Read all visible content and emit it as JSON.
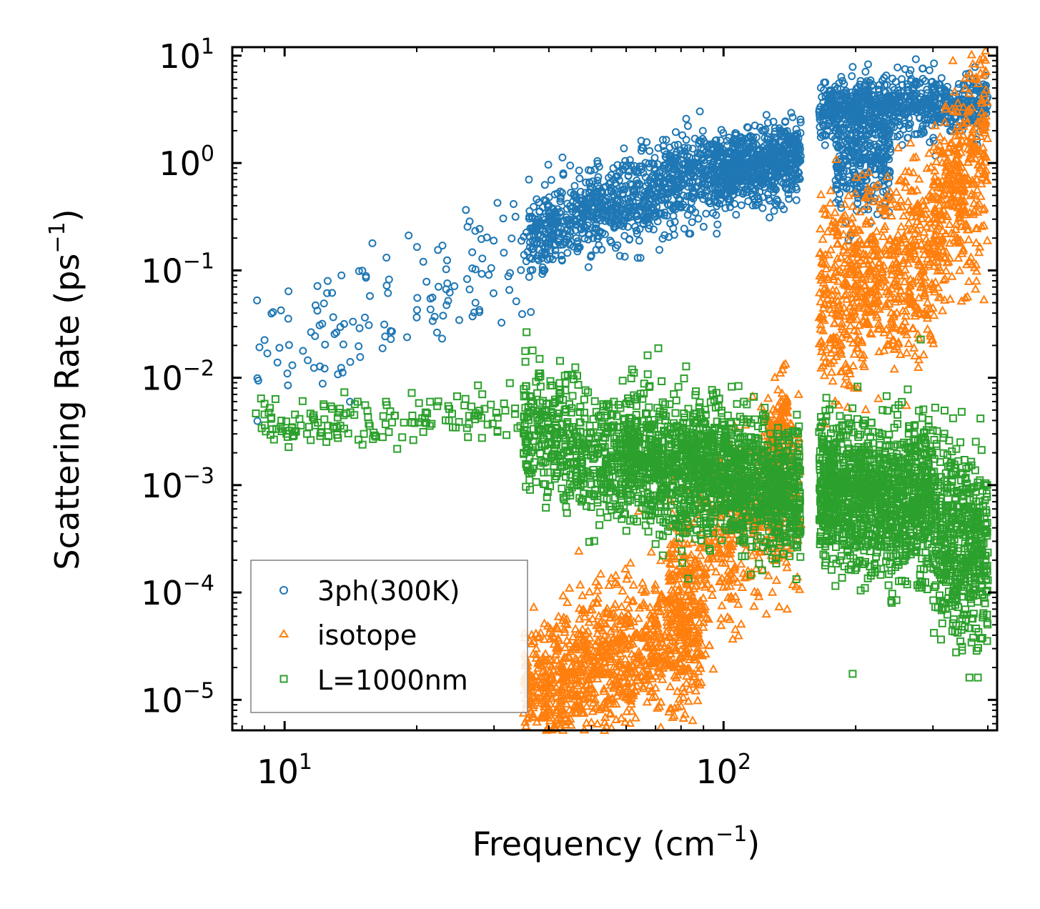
{
  "chart_data": {
    "type": "scatter",
    "xscale": "log",
    "yscale": "log",
    "xlabel": "Frequency (cm",
    "xlabel_unit_exponent": "−1",
    "xlabel_close": ")",
    "ylabel": "Scattering Rate (ps",
    "ylabel_unit_exponent": "−1",
    "ylabel_close": ")",
    "xlim": [
      7.6,
      420
    ],
    "ylim": [
      5.2e-06,
      12
    ],
    "x_ticks": [
      {
        "value": 10,
        "base": "10",
        "exp": "1"
      },
      {
        "value": 100,
        "base": "10",
        "exp": "2"
      }
    ],
    "y_ticks": [
      {
        "value": 10,
        "base": "10",
        "exp": "1"
      },
      {
        "value": 1,
        "base": "10",
        "exp": "0"
      },
      {
        "value": 0.1,
        "base": "10",
        "exp": "−1"
      },
      {
        "value": 0.01,
        "base": "10",
        "exp": "−2"
      },
      {
        "value": 0.001,
        "base": "10",
        "exp": "−3"
      },
      {
        "value": 0.0001,
        "base": "10",
        "exp": "−4"
      },
      {
        "value": 1e-05,
        "base": "10",
        "exp": "−5"
      }
    ],
    "legend_position": "lower-left",
    "series": [
      {
        "name": "3ph(300K)",
        "marker": "circle",
        "color": "#1f77b4",
        "clusters": [
          {
            "x": [
              8.6,
              36
            ],
            "y_center": [
              0.012,
              0.2
            ],
            "spread": 0.3,
            "count": 140
          },
          {
            "x": [
              36,
              95
            ],
            "y_center": [
              0.2,
              0.9
            ],
            "spread": 0.2,
            "count": 900
          },
          {
            "x": [
              95,
              150
            ],
            "y_center": [
              0.8,
              1.1
            ],
            "spread": 0.17,
            "count": 700
          },
          {
            "x": [
              165,
              400
            ],
            "y_center": [
              3.2,
              3.5
            ],
            "spread": 0.14,
            "count": 800
          },
          {
            "x": [
              180,
              240
            ],
            "y_center": [
              0.9,
              1.2
            ],
            "spread": 0.25,
            "count": 300
          }
        ]
      },
      {
        "name": "isotope",
        "marker": "triangle",
        "color": "#ff7f0e",
        "clusters": [
          {
            "x": [
              35,
              90
            ],
            "y_center": [
              1.1e-05,
              4.5e-05
            ],
            "spread": 0.35,
            "count": 1100
          },
          {
            "x": [
              75,
              150
            ],
            "y_center": [
              0.00012,
              0.0009
            ],
            "spread": 0.4,
            "count": 500
          },
          {
            "x": [
              125,
              140
            ],
            "y_center": [
              0.0025,
              0.004
            ],
            "spread": 0.2,
            "count": 120
          },
          {
            "x": [
              165,
              300
            ],
            "y_center": [
              0.05,
              0.15
            ],
            "spread": 0.45,
            "count": 700
          },
          {
            "x": [
              300,
              400
            ],
            "y_center": [
              0.3,
              1.2
            ],
            "spread": 0.45,
            "count": 400
          }
        ]
      },
      {
        "name": "L=1000nm",
        "marker": "square",
        "color": "#2ca02c",
        "clusters": [
          {
            "x": [
              8.6,
              35
            ],
            "y_center": [
              0.0038,
              0.0045
            ],
            "spread": 0.12,
            "count": 160
          },
          {
            "x": [
              35,
              60
            ],
            "y_center": [
              0.0035,
              0.0015
            ],
            "spread": 0.3,
            "count": 500
          },
          {
            "x": [
              60,
              150
            ],
            "y_center": [
              0.0018,
              0.0009
            ],
            "spread": 0.3,
            "count": 1500
          },
          {
            "x": [
              165,
              300
            ],
            "y_center": [
              0.0009,
              0.0007
            ],
            "spread": 0.35,
            "count": 1200
          },
          {
            "x": [
              300,
              400
            ],
            "y_center": [
              0.0004,
              0.0002
            ],
            "spread": 0.45,
            "count": 500
          }
        ]
      }
    ]
  }
}
